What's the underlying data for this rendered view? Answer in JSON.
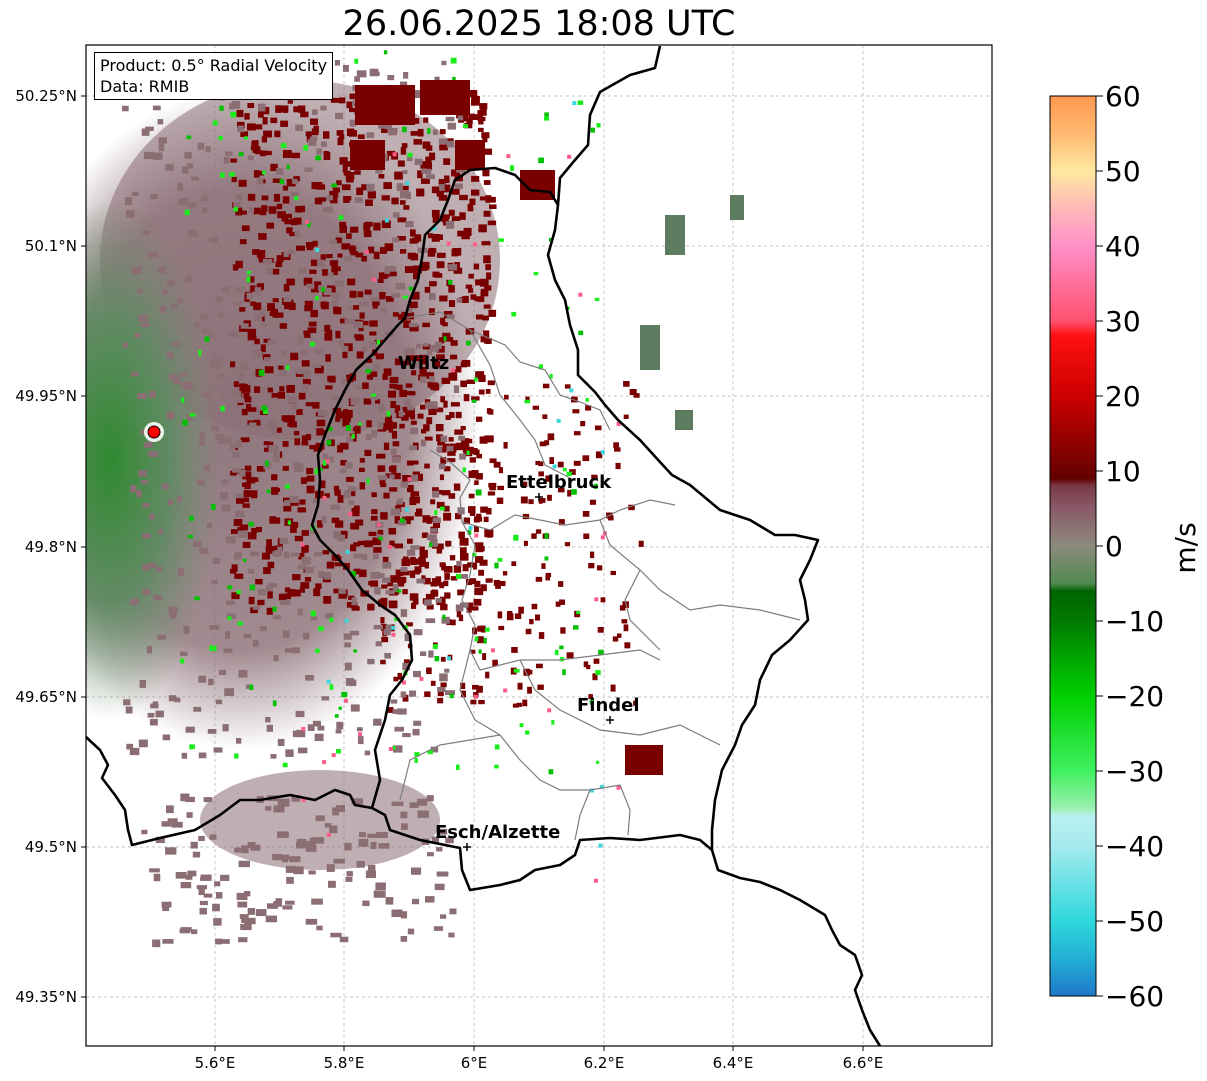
{
  "title": "26.06.2025 18:08 UTC",
  "info": {
    "product": "Product: 0.5° Radial Velocity",
    "data": "Data: RMIB"
  },
  "axes": {
    "x_ticks": [
      "5.6°E",
      "5.8°E",
      "6°E",
      "6.2°E",
      "6.4°E",
      "6.6°E"
    ],
    "y_ticks": [
      "50.25°N",
      "50.1°N",
      "49.95°N",
      "49.8°N",
      "49.65°N",
      "49.5°N",
      "49.35°N"
    ]
  },
  "cities": [
    {
      "name": "Wiltz"
    },
    {
      "name": "Ettelbruck"
    },
    {
      "name": "Findel"
    },
    {
      "name": "Esch/Alzette"
    }
  ],
  "colorbar": {
    "label": "m/s",
    "ticks": [
      "60",
      "50",
      "40",
      "30",
      "20",
      "10",
      "0",
      "−10",
      "−20",
      "−30",
      "−40",
      "−50",
      "−60"
    ],
    "min": -60,
    "max": 60,
    "stops": [
      {
        "v": -60,
        "c": "#1f78c8"
      },
      {
        "v": -55,
        "c": "#22b0d6"
      },
      {
        "v": -50,
        "c": "#2ed8dc"
      },
      {
        "v": -40,
        "c": "#a5eaee"
      },
      {
        "v": -36,
        "c": "#b8f0f0"
      },
      {
        "v": -35,
        "c": "#9cf0b0"
      },
      {
        "v": -30,
        "c": "#40f060"
      },
      {
        "v": -20,
        "c": "#00d000"
      },
      {
        "v": -10,
        "c": "#007a00"
      },
      {
        "v": -6,
        "c": "#006400"
      },
      {
        "v": -5,
        "c": "#4f8a50"
      },
      {
        "v": 0,
        "c": "#8c8a7c"
      },
      {
        "v": 5,
        "c": "#8a5a68"
      },
      {
        "v": 8,
        "c": "#7a3a48"
      },
      {
        "v": 9,
        "c": "#640000"
      },
      {
        "v": 20,
        "c": "#cc0000"
      },
      {
        "v": 28,
        "c": "#ff1010"
      },
      {
        "v": 30,
        "c": "#ff5070"
      },
      {
        "v": 40,
        "c": "#ff90c8"
      },
      {
        "v": 45,
        "c": "#ffb8b8"
      },
      {
        "v": 50,
        "c": "#ffe8a0"
      },
      {
        "v": 55,
        "c": "#ffb870"
      },
      {
        "v": 60,
        "c": "#ff9850"
      }
    ]
  },
  "colors": {
    "border": "#000000",
    "district": "#7d7d7d",
    "grid": "#b0b0b0",
    "radar_site": "#ff0000",
    "inbound_green": "#4f8a50",
    "outbound_red": "#7a0000",
    "near_zero_mauve": "#8a6e74"
  }
}
